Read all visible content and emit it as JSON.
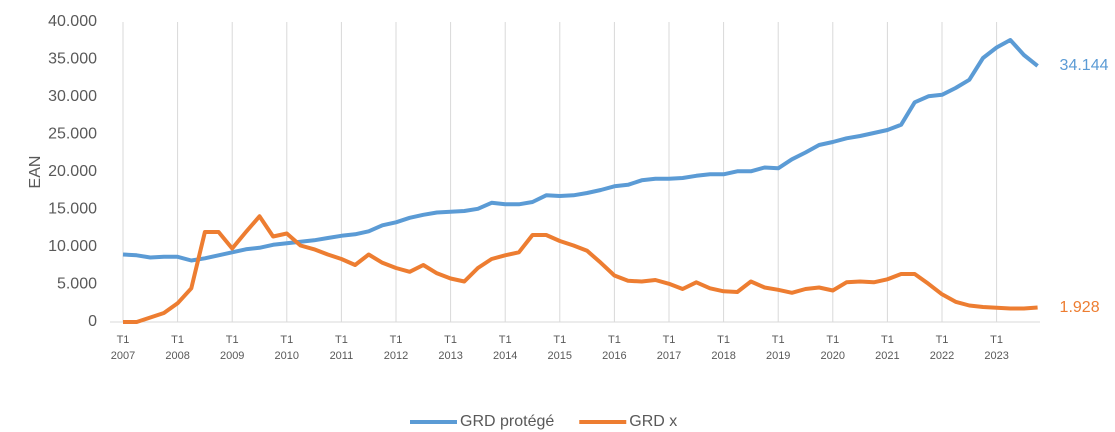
{
  "chart_data": {
    "type": "line",
    "y_label": "EAN",
    "quarters": [
      "T1",
      null,
      null,
      null,
      "T1",
      null,
      null,
      null,
      "T1",
      null,
      null,
      null,
      "T1",
      null,
      null,
      null,
      "T1",
      null,
      null,
      null,
      "T1",
      null,
      null,
      null,
      "T1",
      null,
      null,
      null,
      "T1",
      null,
      null,
      null,
      "T1",
      null,
      null,
      null,
      "T1",
      null,
      null,
      null,
      "T1",
      null,
      null,
      null,
      "T1",
      null,
      null,
      null,
      "T1",
      null,
      null,
      null,
      "T1",
      null,
      null,
      null,
      "T1",
      null,
      null,
      null,
      "T1",
      null,
      null,
      null,
      "T1",
      null,
      null,
      null
    ],
    "years": [
      "2007",
      null,
      null,
      null,
      "2008",
      null,
      null,
      null,
      "2009",
      null,
      null,
      null,
      "2010",
      null,
      null,
      null,
      "2011",
      null,
      null,
      null,
      "2012",
      null,
      null,
      null,
      "2013",
      null,
      null,
      null,
      "2014",
      null,
      null,
      null,
      "2015",
      null,
      null,
      null,
      "2016",
      null,
      null,
      null,
      "2017",
      null,
      null,
      null,
      "2018",
      null,
      null,
      null,
      "2019",
      null,
      null,
      null,
      "2020",
      null,
      null,
      null,
      "2021",
      null,
      null,
      null,
      "2022",
      null,
      null,
      null,
      "2023",
      null,
      null,
      null
    ],
    "series": [
      {
        "name": "GRD protégé",
        "color": "#5b9bd5",
        "values": [
          9000,
          8900,
          8600,
          8700,
          8700,
          8200,
          8500,
          8900,
          9300,
          9700,
          9900,
          10300,
          10500,
          10700,
          10900,
          11200,
          11500,
          11700,
          12100,
          12900,
          13300,
          13900,
          14300,
          14600,
          14700,
          14800,
          15100,
          15900,
          15700,
          15700,
          16000,
          16900,
          16800,
          16900,
          17200,
          17600,
          18100,
          18300,
          18900,
          19100,
          19100,
          19200,
          19500,
          19700,
          19700,
          20100,
          20100,
          20600,
          20500,
          21700,
          22600,
          23600,
          24000,
          24500,
          24800,
          25200,
          25600,
          26300,
          29300,
          30100,
          30300,
          31200,
          32300,
          35200,
          36600,
          37600,
          35600,
          34144
        ],
        "value_labels": [
          null,
          null,
          null,
          null,
          null,
          null,
          null,
          null,
          null,
          null,
          null,
          null,
          null,
          null,
          null,
          null,
          null,
          null,
          null,
          null,
          null,
          null,
          null,
          null,
          null,
          null,
          null,
          null,
          null,
          null,
          null,
          null,
          null,
          null,
          null,
          null,
          null,
          null,
          null,
          null,
          null,
          null,
          null,
          null,
          null,
          null,
          null,
          null,
          null,
          null,
          null,
          null,
          null,
          null,
          null,
          null,
          null,
          null,
          null,
          null,
          null,
          null,
          null,
          null,
          null,
          null,
          null,
          "34.144"
        ]
      },
      {
        "name": "GRD x",
        "color": "#ed7d31",
        "values": [
          0,
          0,
          600,
          1200,
          2500,
          4500,
          12000,
          12000,
          9800,
          12000,
          14100,
          11400,
          11800,
          10200,
          9700,
          9000,
          8400,
          7600,
          9000,
          7900,
          7200,
          6700,
          7600,
          6500,
          5800,
          5400,
          7200,
          8400,
          8900,
          9300,
          11600,
          11600,
          10800,
          10200,
          9500,
          7900,
          6200,
          5500,
          5400,
          5600,
          5100,
          4400,
          5300,
          4500,
          4100,
          4000,
          5400,
          4600,
          4300,
          3900,
          4400,
          4600,
          4200,
          5300,
          5400,
          5300,
          5700,
          6400,
          6400,
          5100,
          3700,
          2700,
          2200,
          2000,
          1900,
          1800,
          1800,
          1928
        ],
        "value_labels": [
          null,
          null,
          null,
          null,
          null,
          null,
          null,
          null,
          null,
          null,
          null,
          null,
          null,
          null,
          null,
          null,
          null,
          null,
          null,
          null,
          null,
          null,
          null,
          null,
          null,
          null,
          null,
          null,
          null,
          null,
          null,
          null,
          null,
          null,
          null,
          null,
          null,
          null,
          null,
          null,
          null,
          null,
          null,
          null,
          null,
          null,
          null,
          null,
          null,
          null,
          null,
          null,
          null,
          null,
          null,
          null,
          null,
          null,
          null,
          null,
          null,
          null,
          null,
          null,
          null,
          null,
          null,
          "1.928"
        ]
      }
    ],
    "ylim": [
      0,
      40000
    ],
    "yticks": [
      0,
      {
        "value": 5000,
        "label": "5.000"
      },
      {
        "value": 10000,
        "label": "10.000"
      },
      {
        "value": 15000,
        "label": "15.000"
      },
      {
        "value": 20000,
        "label": "20.000"
      },
      {
        "value": 25000,
        "label": "25.000"
      },
      {
        "value": 30000,
        "label": "30.000"
      },
      {
        "value": 35000,
        "label": "35.000"
      },
      {
        "value": 40000,
        "label": "40.000"
      }
    ],
    "grid": true,
    "legend": "bottom"
  }
}
